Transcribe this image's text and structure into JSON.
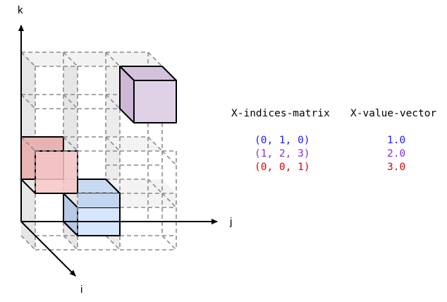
{
  "axes": {
    "k_label": "k",
    "j_label": "j",
    "i_label": "i"
  },
  "table": {
    "indices_header": "X-indices-matrix",
    "values_header": "X-value-vector",
    "rows": [
      {
        "index": "(0, 1, 0)",
        "value": "1.0",
        "color": "#1a1aff"
      },
      {
        "index": "(1, 2, 3)",
        "value": "2.0",
        "color": "#8a2be2"
      },
      {
        "index": "(0, 0, 1)",
        "value": "3.0",
        "color": "#e00000"
      }
    ]
  },
  "cube_colors": {
    "purple_face": "#e0d2e6",
    "purple_top": "#d4c2dc",
    "red_face": "#f5c6c6",
    "red_side": "#e3a8a8",
    "blue_face": "#d6e6fb",
    "blue_side": "#b7c9e4",
    "grid_side": "#e0e0e0",
    "grid_stroke": "#888888"
  }
}
